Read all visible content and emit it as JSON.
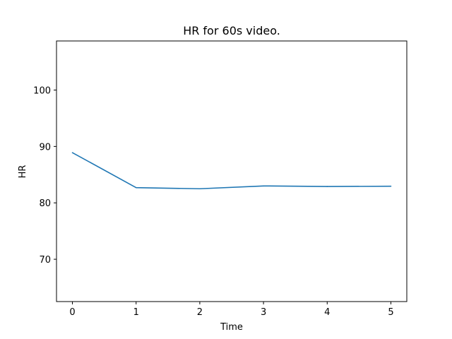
{
  "chart_data": {
    "type": "line",
    "title": "HR for 60s video.",
    "xlabel": "Time",
    "ylabel": "HR",
    "x": [
      0,
      1,
      2,
      3,
      4,
      5
    ],
    "series": [
      {
        "values": [
          88.9,
          82.7,
          82.5,
          83.0,
          82.9,
          82.95
        ]
      }
    ],
    "xlim": [
      -0.25,
      5.25
    ],
    "ylim": [
      62.5,
      108.7
    ],
    "xticks": [
      0,
      1,
      2,
      3,
      4,
      5
    ],
    "yticks": [
      70,
      80,
      90,
      100
    ],
    "grid": false,
    "colors": {
      "line": "#1f77b4",
      "axes": "#000000"
    }
  }
}
